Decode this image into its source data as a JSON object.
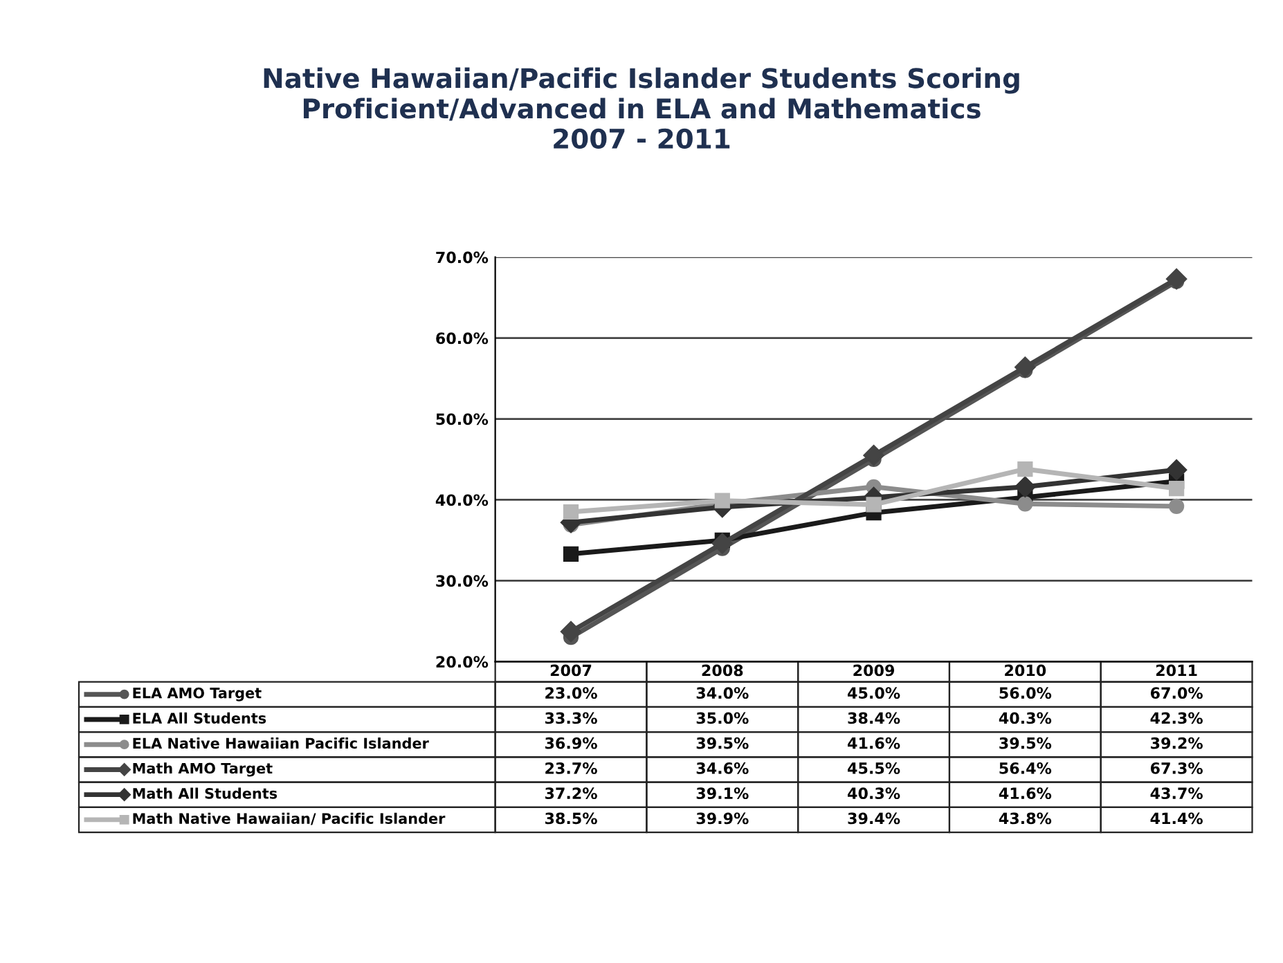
{
  "chart_data": {
    "type": "line",
    "title": "Native Hawaiian/Pacific Islander Students Scoring\nProficient/Advanced in ELA and Mathematics\n2007 - 2011",
    "categories": [
      "2007",
      "2008",
      "2009",
      "2010",
      "2011"
    ],
    "series": [
      {
        "name": "ELA AMO Target",
        "color": "#555555",
        "marker": "circle",
        "values": [
          23.0,
          34.0,
          45.0,
          56.0,
          67.0
        ],
        "value_labels": [
          "23.0%",
          "34.0%",
          "45.0%",
          "56.0%",
          "67.0%"
        ]
      },
      {
        "name": "ELA All Students",
        "color": "#1a1a1a",
        "marker": "square",
        "values": [
          33.3,
          35.0,
          38.4,
          40.3,
          42.3
        ],
        "value_labels": [
          "33.3%",
          "35.0%",
          "38.4%",
          "40.3%",
          "42.3%"
        ]
      },
      {
        "name": "ELA Native Hawaiian Pacific Islander",
        "color": "#8c8c8c",
        "marker": "circle",
        "values": [
          36.9,
          39.5,
          41.6,
          39.5,
          39.2
        ],
        "value_labels": [
          "36.9%",
          "39.5%",
          "41.6%",
          "39.5%",
          "39.2%"
        ]
      },
      {
        "name": "Math AMO Target",
        "color": "#444444",
        "marker": "diamond",
        "values": [
          23.7,
          34.6,
          45.5,
          56.4,
          67.3
        ],
        "value_labels": [
          "23.7%",
          "34.6%",
          "45.5%",
          "56.4%",
          "67.3%"
        ]
      },
      {
        "name": "Math All Students",
        "color": "#333333",
        "marker": "diamond",
        "values": [
          37.2,
          39.1,
          40.3,
          41.6,
          43.7
        ],
        "value_labels": [
          "37.2%",
          "39.1%",
          "40.3%",
          "41.6%",
          "43.7%"
        ]
      },
      {
        "name": "Math Native Hawaiian/ Pacific Islander",
        "color": "#b5b5b5",
        "marker": "square",
        "values": [
          38.5,
          39.9,
          39.4,
          43.8,
          41.4
        ],
        "value_labels": [
          "38.5%",
          "39.9%",
          "39.4%",
          "43.8%",
          "41.4%"
        ]
      }
    ],
    "ylim": [
      20,
      70
    ],
    "yticks": [
      {
        "value": 20,
        "label": "20.0%"
      },
      {
        "value": 30,
        "label": "30.0%"
      },
      {
        "value": 40,
        "label": "40.0%"
      },
      {
        "value": 50,
        "label": "50.0%"
      },
      {
        "value": 60,
        "label": "60.0%"
      },
      {
        "value": 70,
        "label": "70.0%"
      }
    ],
    "grid": "y",
    "legend": "bottom"
  }
}
